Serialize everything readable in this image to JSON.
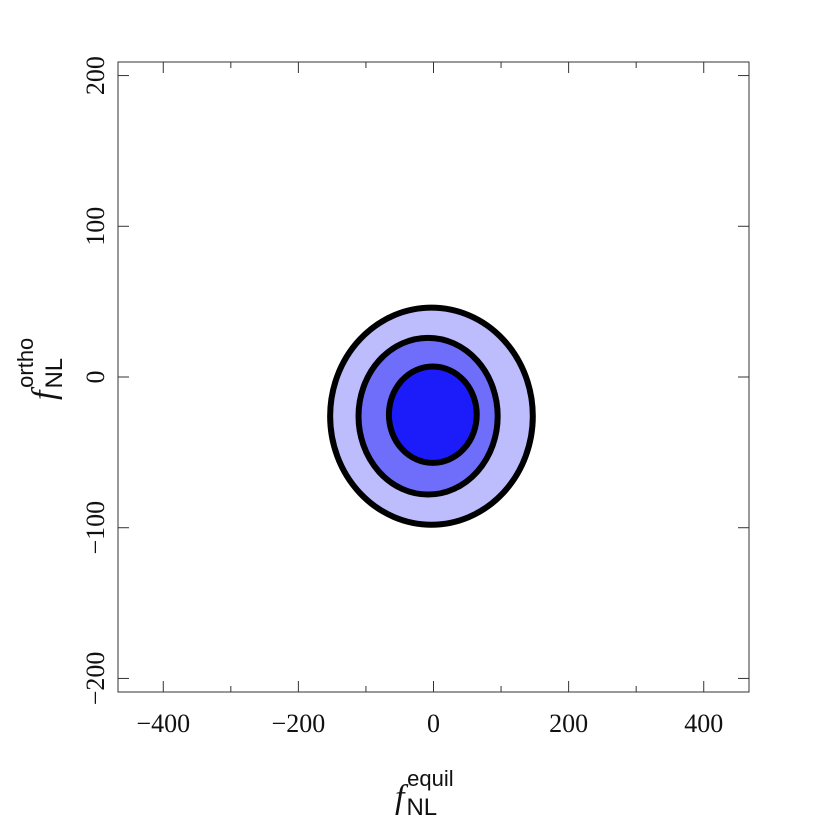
{
  "chart_data": {
    "type": "contour",
    "x_label": {
      "symbol": "f",
      "subscript": "NL",
      "superscript": "equil"
    },
    "y_label": {
      "symbol": "f",
      "subscript": "NL",
      "superscript": "ortho"
    },
    "xlim": [
      -467,
      467
    ],
    "ylim": [
      -209,
      209
    ],
    "xticks": [
      {
        "value": -400,
        "label": "−400"
      },
      {
        "value": -200,
        "label": "−200"
      },
      0,
      200,
      400
    ],
    "xminorticks": [
      -300,
      -100,
      100,
      300
    ],
    "yticks": [
      {
        "value": -200,
        "label": "−200"
      },
      {
        "value": -100,
        "label": "−100"
      },
      0,
      100,
      200
    ],
    "contours": [
      {
        "color": "#bdbdfd",
        "cx": -3,
        "cy": -26,
        "rx": 150,
        "ry": 72
      },
      {
        "color": "#6e6efb",
        "cx": -8,
        "cy": -26,
        "rx": 103,
        "ry": 52
      },
      {
        "color": "#1c1cfb",
        "cx": -1,
        "cy": -25,
        "rx": 65,
        "ry": 32
      }
    ]
  }
}
